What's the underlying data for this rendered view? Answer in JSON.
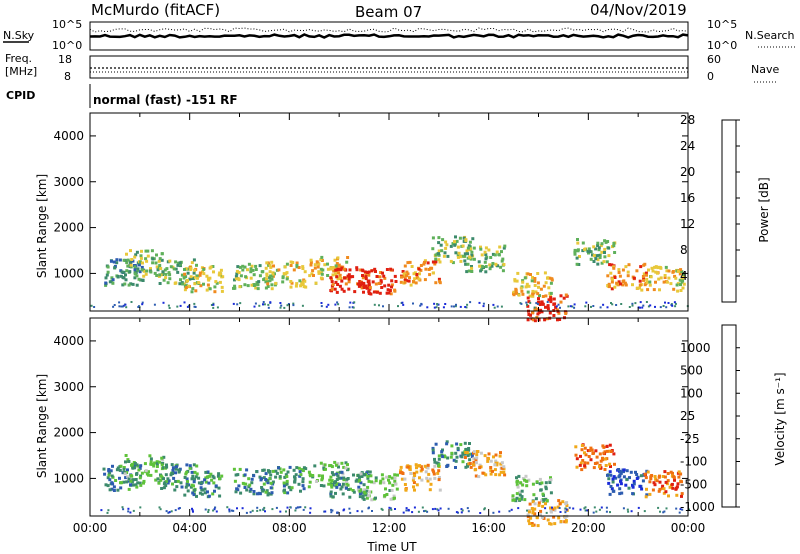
{
  "header": {
    "title": "McMurdo (fitACF)",
    "beam": "Beam 07",
    "date": "04/Nov/2019"
  },
  "top_panels": {
    "nsky_label": "N.Sky",
    "nsky_ticks": [
      "10^5",
      "10^0"
    ],
    "nsearch_label": "N.Search",
    "nsearch_ticks": [
      "10^5",
      "10^0"
    ],
    "freq_label_1": "Freq.",
    "freq_label_2": "[MHz]",
    "freq_ticks": [
      "18",
      "8"
    ],
    "nave_label": "Nave",
    "nave_ticks": [
      "60",
      "0"
    ],
    "cpid_label": "CPID",
    "cpid_text": "normal (fast) -151 RF"
  },
  "chart_data": [
    {
      "type": "heatmap",
      "panel": "power",
      "ylabel": "Slant Range [km]",
      "xlabel": "",
      "ylim": [
        180,
        4500
      ],
      "y_ticks": [
        "1000",
        "2000",
        "3000",
        "4000"
      ],
      "x_ticks": [],
      "colorbar_label": "Power [dB]",
      "colorbar_ticks": [
        "4",
        "8",
        "12",
        "16",
        "20",
        "24",
        "28"
      ],
      "colorbar_colors": [
        "#1a2bd8",
        "#2d5cb0",
        "#3c8a6c",
        "#5fb05a",
        "#e8c83a",
        "#f08a1e",
        "#e01f10"
      ],
      "patches": [
        {
          "x": 1.3,
          "y": 1050,
          "level": 2
        },
        {
          "x": 2.1,
          "y": 1250,
          "level": 3
        },
        {
          "x": 3.5,
          "y": 1050,
          "level": 3
        },
        {
          "x": 4.5,
          "y": 900,
          "level": 4
        },
        {
          "x": 6.5,
          "y": 950,
          "level": 3
        },
        {
          "x": 7.8,
          "y": 1000,
          "level": 4
        },
        {
          "x": 9.5,
          "y": 1100,
          "level": 4
        },
        {
          "x": 10.4,
          "y": 900,
          "level": 6
        },
        {
          "x": 11.5,
          "y": 850,
          "level": 6
        },
        {
          "x": 13.2,
          "y": 1050,
          "level": 5
        },
        {
          "x": 14.5,
          "y": 1550,
          "level": 3
        },
        {
          "x": 15.8,
          "y": 1350,
          "level": 3
        },
        {
          "x": 17.7,
          "y": 800,
          "level": 4
        },
        {
          "x": 18.3,
          "y": 280,
          "level": 6
        },
        {
          "x": 20.2,
          "y": 1500,
          "level": 3
        },
        {
          "x": 21.5,
          "y": 950,
          "level": 5
        },
        {
          "x": 23.0,
          "y": 900,
          "level": 4
        }
      ]
    },
    {
      "type": "heatmap",
      "panel": "velocity",
      "ylabel": "Slant Range [km]",
      "xlabel": "Time UT",
      "ylim": [
        180,
        4500
      ],
      "y_ticks": [
        "1000",
        "2000",
        "3000",
        "4000"
      ],
      "x_ticks": [
        "00:00",
        "04:00",
        "08:00",
        "12:00",
        "16:00",
        "20:00",
        "00:00"
      ],
      "x_values_hours": [
        0,
        4,
        8,
        12,
        16,
        20,
        24
      ],
      "colorbar_label": "Velocity [m s⁻¹]",
      "colorbar_ticks": [
        "1000",
        "500",
        "100",
        "25",
        "-25",
        "-100",
        "-500",
        "-1000"
      ],
      "colorbar_colors": [
        "#1a2bd8",
        "#2d5cb0",
        "#3c8a6c",
        "#5fc23a",
        "#c8c8c8",
        "#f0a818",
        "#f07010",
        "#e01f10"
      ],
      "patches": [
        {
          "x": 1.3,
          "y": 1050,
          "level": 2
        },
        {
          "x": 2.1,
          "y": 1250,
          "level": 3
        },
        {
          "x": 3.5,
          "y": 1050,
          "level": 2
        },
        {
          "x": 4.5,
          "y": 900,
          "level": 2
        },
        {
          "x": 6.5,
          "y": 950,
          "level": 2
        },
        {
          "x": 7.8,
          "y": 1000,
          "level": 2
        },
        {
          "x": 9.5,
          "y": 1100,
          "level": 3
        },
        {
          "x": 10.4,
          "y": 900,
          "level": 2
        },
        {
          "x": 11.5,
          "y": 850,
          "level": 3
        },
        {
          "x": 13.2,
          "y": 1050,
          "level": 5
        },
        {
          "x": 14.5,
          "y": 1550,
          "level": 2
        },
        {
          "x": 15.8,
          "y": 1350,
          "level": 5
        },
        {
          "x": 17.7,
          "y": 800,
          "level": 3
        },
        {
          "x": 18.3,
          "y": 280,
          "level": 5
        },
        {
          "x": 20.2,
          "y": 1500,
          "level": 6
        },
        {
          "x": 21.5,
          "y": 950,
          "level": 1
        },
        {
          "x": 23.0,
          "y": 900,
          "level": 6
        }
      ]
    }
  ]
}
